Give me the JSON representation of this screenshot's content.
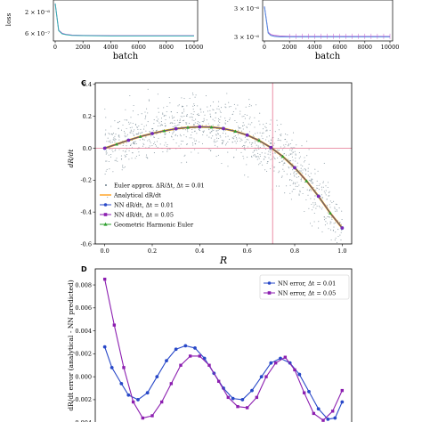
{
  "colors": {
    "scatter": "#6a7d8a",
    "analytical": "#ff9f1c",
    "nn_001": "#2848c8",
    "nn_005": "#8c1fb0",
    "geometric": "#2ea02e",
    "reference": "#e5738f",
    "loss_b1": "#c060d0",
    "loss_b2": "#30b0b0",
    "loss_b3": "#5090e0"
  },
  "chart_data": [
    {
      "id": "panel-a-partial",
      "type": "line",
      "xlabel": "batch",
      "ylabel": "loss",
      "x_ticks": [
        "0",
        "2000",
        "4000",
        "6000",
        "8000",
        "10000"
      ],
      "y_ticks": [
        "2 × 10⁻⁶",
        "6 × 10⁻⁷"
      ],
      "xlim": [
        0,
        10000
      ],
      "ylim": [
        5e-07,
        3.5e-06
      ],
      "log_y": true,
      "series": [
        {
          "x": [
            0,
            250,
            500,
            800,
            1200,
            2000,
            4000,
            6000,
            8000,
            10000
          ],
          "values": [
            3.2e-06,
            8e-07,
            6.8e-07,
            6.4e-07,
            6.2e-07,
            6.1e-07,
            6e-07,
            6e-07,
            6e-07,
            6e-07
          ]
        },
        {
          "x": [
            0,
            250,
            500,
            800,
            1200,
            2000,
            4000,
            6000,
            8000,
            10000
          ],
          "values": [
            3.2e-06,
            7.8e-07,
            6.6e-07,
            6.3e-07,
            6.1e-07,
            6e-07,
            5.9e-07,
            5.9e-07,
            5.9e-07,
            5.9e-07
          ]
        }
      ]
    },
    {
      "id": "panel-b-partial",
      "type": "line",
      "xlabel": "batch",
      "ylabel": "",
      "x_ticks": [
        "0",
        "2000",
        "4000",
        "6000",
        "8000",
        "10000"
      ],
      "y_ticks": [
        "3 × 10⁻⁶",
        "3 × 10⁻⁶"
      ],
      "xlim": [
        0,
        10000
      ],
      "ylim": [
        2.9e-06,
        3.7e-06
      ],
      "series": [
        {
          "x": [
            0,
            300,
            500,
            800,
            1200,
            2000,
            4000,
            6000,
            8000,
            10000
          ],
          "values": [
            3.6e-06,
            3.05e-06,
            3e-06,
            2.98e-06,
            2.97e-06,
            2.96e-06,
            2.96e-06,
            2.96e-06,
            2.96e-06,
            2.96e-06
          ]
        },
        {
          "x": [
            0,
            300,
            500,
            800,
            1200,
            2000,
            4000,
            6000,
            8000,
            10000
          ],
          "values": [
            3.6e-06,
            3.03e-06,
            2.98e-06,
            2.96e-06,
            2.95e-06,
            2.95e-06,
            2.95e-06,
            2.95e-06,
            2.95e-06,
            2.95e-06
          ]
        }
      ]
    },
    {
      "id": "panel-c",
      "panel_label": "C",
      "type": "scatter",
      "xlabel": "R",
      "ylabel": "dR/dt",
      "xlim": [
        -0.04,
        1.04
      ],
      "ylim": [
        -0.6,
        0.41
      ],
      "x_ticks": [
        "0.0",
        "0.2",
        "0.4",
        "0.6",
        "0.8",
        "1.0"
      ],
      "y_ticks": [
        "0.4",
        "0.2",
        "0.0",
        "-0.2",
        "-0.4",
        "-0.6"
      ],
      "x_tick_values": [
        0,
        0.2,
        0.4,
        0.6,
        0.8,
        1.0
      ],
      "y_tick_values": [
        0.4,
        0.2,
        0.0,
        -0.2,
        -0.4,
        -0.6
      ],
      "reference_lines": {
        "x": 0.707,
        "y": 0.0
      },
      "legend": {
        "placement": "lower-left",
        "entries": [
          "Euler approx. ΔR/Δt, Δt = 0.01",
          "Analytical dR/dt",
          "NN dR/dt, Δt = 0.01",
          "NN dR/dt, Δt = 0.05",
          "Geometric Harmonic Euler"
        ]
      },
      "curve": {
        "x": [
          0.0,
          0.05,
          0.1,
          0.15,
          0.2,
          0.25,
          0.3,
          0.35,
          0.4,
          0.45,
          0.5,
          0.55,
          0.6,
          0.65,
          0.7,
          0.75,
          0.8,
          0.85,
          0.9,
          0.95,
          1.0
        ],
        "y": [
          0.0,
          0.025,
          0.05,
          0.073,
          0.092,
          0.109,
          0.122,
          0.13,
          0.134,
          0.132,
          0.123,
          0.106,
          0.082,
          0.048,
          0.004,
          -0.052,
          -0.122,
          -0.205,
          -0.301,
          -0.407,
          -0.5
        ]
      },
      "nn_markers": {
        "x": [
          0.0,
          0.1,
          0.2,
          0.3,
          0.4,
          0.5,
          0.6,
          0.7,
          0.8,
          0.9,
          1.0
        ],
        "y": [
          0.0,
          0.05,
          0.092,
          0.122,
          0.134,
          0.123,
          0.082,
          0.004,
          -0.122,
          -0.301,
          -0.5
        ]
      },
      "scatter_noise": 0.09,
      "scatter_count": 1100
    },
    {
      "id": "panel-d",
      "panel_label": "D",
      "type": "line",
      "xlabel": "",
      "ylabel": "dR/dt error (analytical - NN predicted)",
      "xlim": [
        -0.04,
        1.04
      ],
      "ylim": [
        -0.0041,
        0.0094
      ],
      "y_ticks": [
        "0.008",
        "0.006",
        "0.004",
        "0.002",
        "0.000",
        "-0.002",
        "-0.004"
      ],
      "y_tick_values": [
        0.008,
        0.006,
        0.004,
        0.002,
        0.0,
        -0.002,
        -0.004
      ],
      "legend": {
        "placement": "top-right",
        "entries": [
          "NN error, Δt = 0.01",
          "NN error, Δt = 0.05"
        ]
      },
      "series": [
        {
          "name": "NN error, Δt = 0.01",
          "x": [
            0.0,
            0.03,
            0.07,
            0.1,
            0.14,
            0.18,
            0.22,
            0.26,
            0.3,
            0.34,
            0.38,
            0.42,
            0.46,
            0.5,
            0.54,
            0.58,
            0.62,
            0.66,
            0.7,
            0.74,
            0.78,
            0.82,
            0.86,
            0.9,
            0.94,
            0.97,
            1.0
          ],
          "values": [
            0.0026,
            0.0008,
            -0.0006,
            -0.0016,
            -0.002,
            -0.0014,
            0.0,
            0.0014,
            0.0024,
            0.0027,
            0.0025,
            0.0016,
            0.0003,
            -0.001,
            -0.0019,
            -0.002,
            -0.0012,
            0.0,
            0.0012,
            0.0016,
            0.0012,
            0.0002,
            -0.0013,
            -0.0028,
            -0.0037,
            -0.0036,
            -0.0022
          ]
        },
        {
          "name": "NN error, Δt = 0.05",
          "x": [
            0.0,
            0.04,
            0.08,
            0.12,
            0.16,
            0.2,
            0.24,
            0.28,
            0.32,
            0.36,
            0.4,
            0.44,
            0.48,
            0.52,
            0.56,
            0.6,
            0.64,
            0.68,
            0.72,
            0.76,
            0.8,
            0.84,
            0.88,
            0.92,
            0.96,
            1.0
          ],
          "values": [
            0.0085,
            0.0045,
            0.0008,
            -0.0022,
            -0.0036,
            -0.0034,
            -0.0022,
            -0.0006,
            0.001,
            0.0018,
            0.0018,
            0.001,
            -0.0004,
            -0.0018,
            -0.0026,
            -0.0027,
            -0.0018,
            0.0,
            0.0012,
            0.0017,
            0.0006,
            -0.0014,
            -0.0032,
            -0.0038,
            -0.003,
            -0.0012
          ]
        }
      ]
    }
  ]
}
